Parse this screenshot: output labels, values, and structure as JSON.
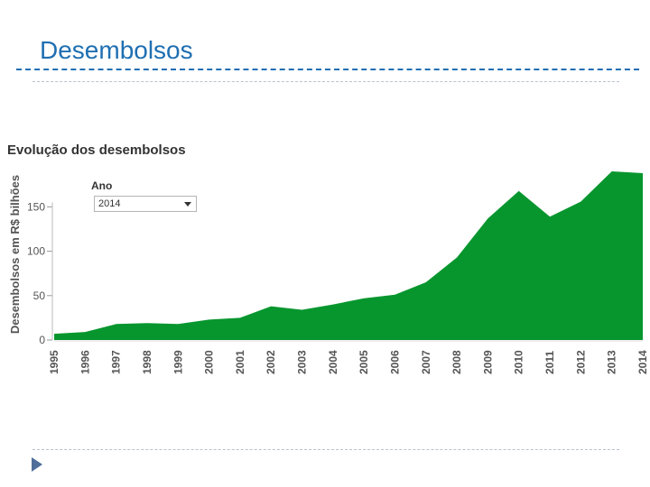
{
  "slide": {
    "title": "Desembolsos"
  },
  "filter": {
    "label": "Ano",
    "selected": "2014"
  },
  "chart_data": {
    "type": "area",
    "title": "Evolução dos desembolsos",
    "ylabel": "Desembolsos em R$ bilhões",
    "xlabel": "",
    "x": [
      "1995",
      "1996",
      "1997",
      "1998",
      "1999",
      "2000",
      "2001",
      "2002",
      "2003",
      "2004",
      "2005",
      "2006",
      "2007",
      "2008",
      "2009",
      "2010",
      "2011",
      "2012",
      "2013",
      "2014"
    ],
    "series": [
      {
        "values": [
          7,
          9,
          18,
          19,
          18,
          23,
          25,
          38,
          34,
          40,
          47,
          51,
          65,
          93,
          137,
          168,
          139,
          156,
          190,
          188
        ]
      }
    ],
    "ylim": [
      0,
      190
    ],
    "yticks": [
      0,
      50,
      100,
      150
    ],
    "color": "#07962e",
    "grid": false,
    "legend": "none"
  }
}
